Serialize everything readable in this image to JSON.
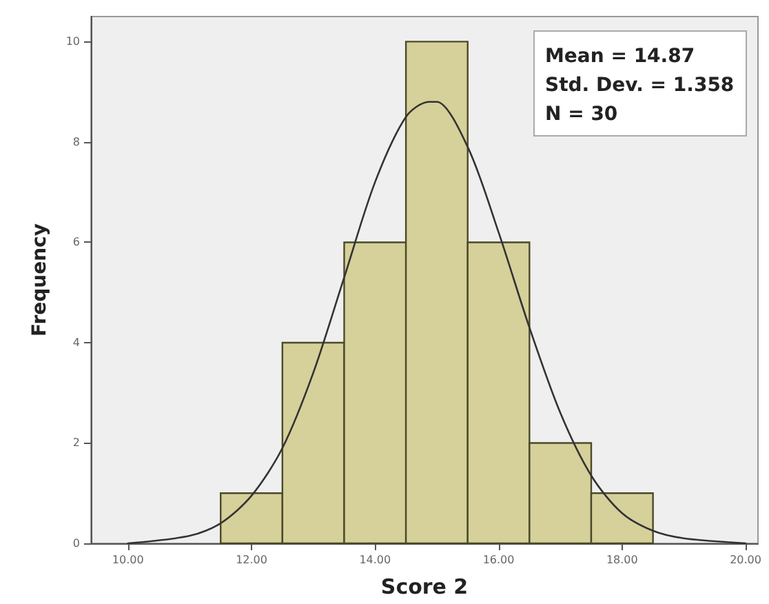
{
  "chart_data": {
    "type": "histogram",
    "xlabel": "Score 2",
    "ylabel": "Frequency",
    "bins": [
      11.5,
      12.5,
      13.5,
      14.5,
      15.5,
      16.5,
      17.5,
      18.5
    ],
    "values": [
      1,
      4,
      6,
      10,
      6,
      2,
      1
    ],
    "color": "#d6d09a",
    "series": [
      {
        "type": "line",
        "color": "#333333",
        "x": [
          10,
          11,
          11.5,
          12,
          12.5,
          13,
          13.5,
          14,
          14.5,
          14.87,
          15,
          15.5,
          16,
          16.5,
          17,
          17.5,
          18,
          18.5,
          19,
          20
        ],
        "values": [
          0,
          0.15,
          0.4,
          0.95,
          1.9,
          3.4,
          5.3,
          7.2,
          8.5,
          8.8,
          8.8,
          7.9,
          6.2,
          4.3,
          2.6,
          1.35,
          0.6,
          0.25,
          0.1,
          0
        ]
      }
    ],
    "xlim": [
      9.4,
      20.2
    ],
    "xticks": [
      {
        "value": 10,
        "label": "10.00"
      },
      {
        "value": 12,
        "label": "12.00"
      },
      {
        "value": 14,
        "label": "14.00"
      },
      {
        "value": 16,
        "label": "16.00"
      },
      {
        "value": 18,
        "label": "18.00"
      },
      {
        "value": 20,
        "label": "20.00"
      }
    ],
    "ylim": [
      0,
      10.5
    ],
    "yticks": [
      0,
      2,
      4,
      6,
      8,
      10
    ],
    "annotations": [
      "Mean = 14.87",
      "Std. Dev. = 1.358",
      "N = 30"
    ],
    "grid": false,
    "legend": false,
    "marker": "none"
  }
}
